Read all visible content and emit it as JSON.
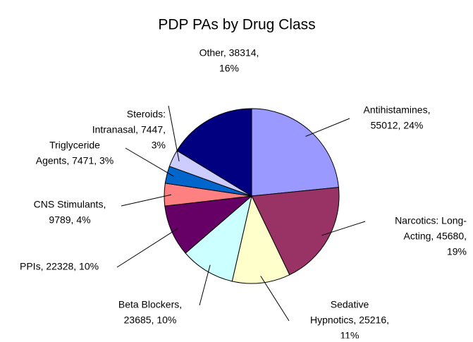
{
  "chart_data": {
    "type": "pie",
    "title": "PDP PAs by Drug Class",
    "values": [
      55012,
      45680,
      25216,
      23685,
      22328,
      9789,
      7471,
      7447,
      38314
    ],
    "value_labels": [
      [
        "Antihistamines,",
        "55012, 24%"
      ],
      [
        "Narcotics: Long-",
        "Acting, 45680,",
        "19%"
      ],
      [
        "Sedative",
        "Hypnotics, 25216,",
        "11%"
      ],
      [
        "Beta Blockers,",
        "23685, 10%"
      ],
      [
        "PPIs, 22328, 10%"
      ],
      [
        "CNS Stimulants,",
        "9789, 4%"
      ],
      [
        "Triglyceride",
        "Agents, 7471, 3%"
      ],
      [
        "Steroids:",
        "Intranasal, 7447,",
        "3%"
      ],
      [
        "Other, 38314,",
        "16%"
      ]
    ],
    "colors": [
      "#9999ff",
      "#993366",
      "#ffffcc",
      "#ccffff",
      "#660066",
      "#ff8080",
      "#0066cc",
      "#ccccff",
      "#000080"
    ]
  }
}
